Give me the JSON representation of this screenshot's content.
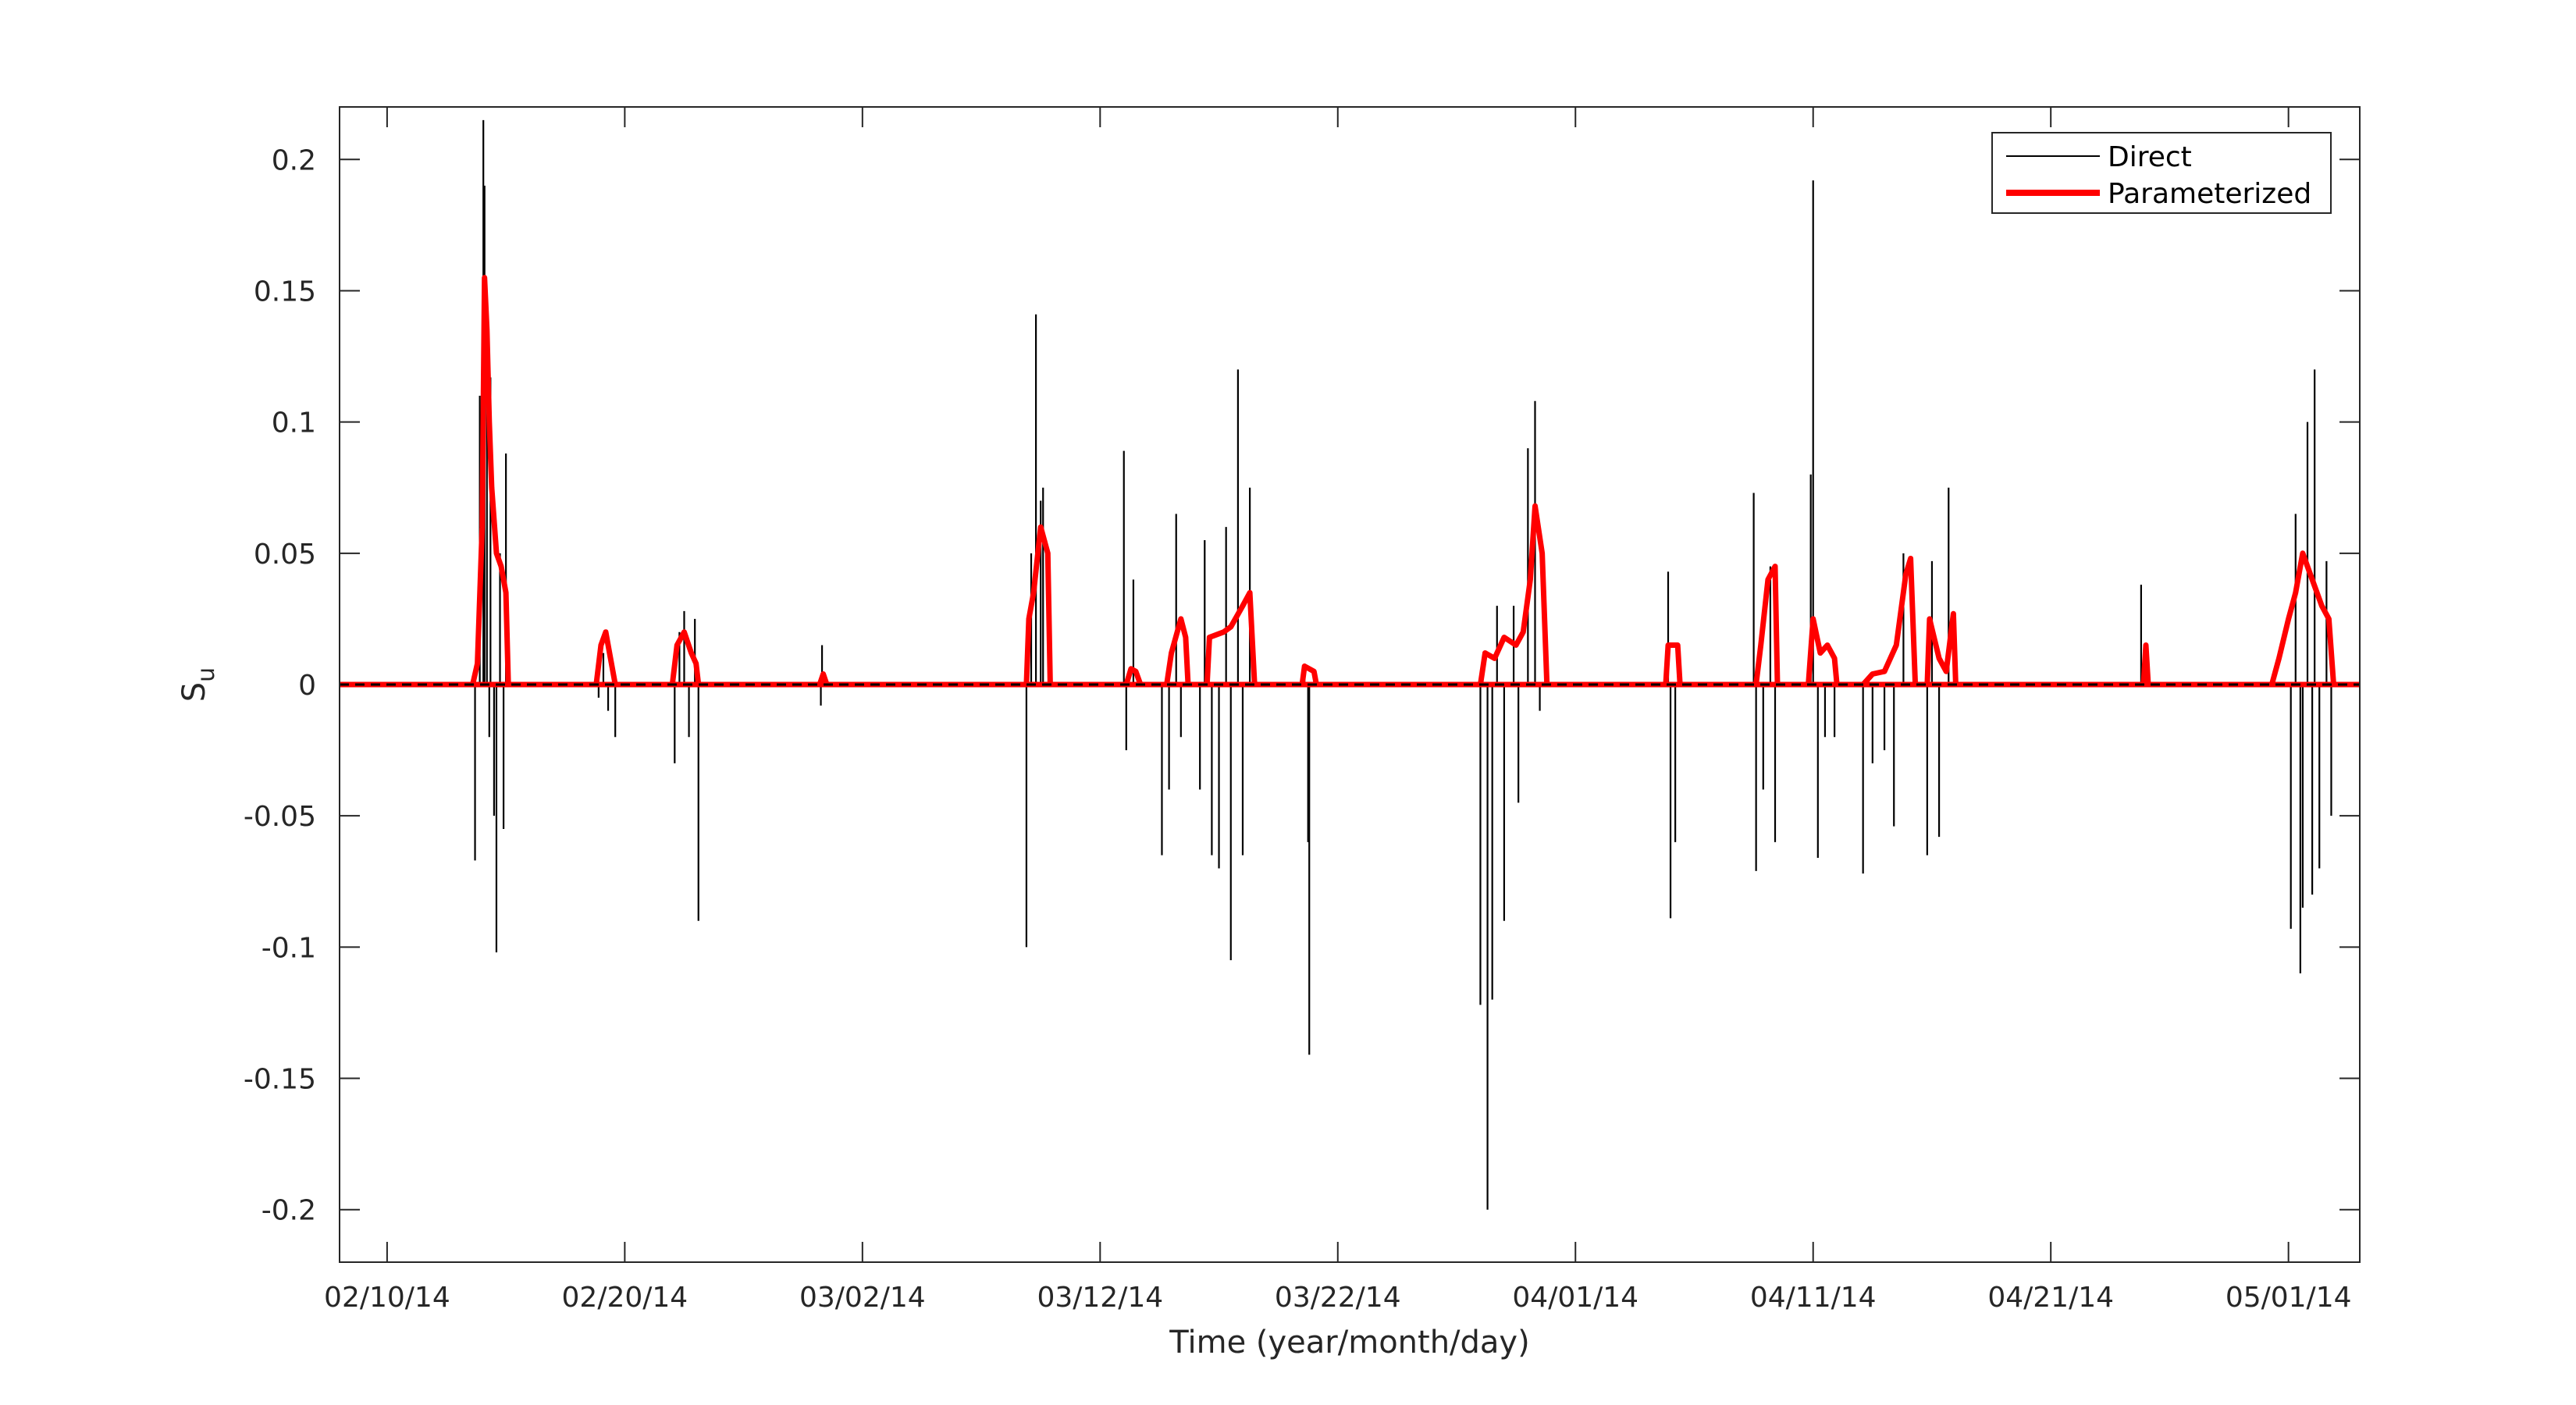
{
  "chart_data": {
    "type": "line",
    "xlabel": "Time (year/month/day)",
    "ylabel_main": "S",
    "ylabel_sub": "u",
    "x_start": "02/08/14",
    "x_end": "05/03/14",
    "xlim_days": [
      0,
      85
    ],
    "xticks": [
      {
        "day": 2,
        "label": "02/10/14"
      },
      {
        "day": 12,
        "label": "02/20/14"
      },
      {
        "day": 22,
        "label": "03/02/14"
      },
      {
        "day": 32,
        "label": "03/12/14"
      },
      {
        "day": 42,
        "label": "03/22/14"
      },
      {
        "day": 52,
        "label": "04/01/14"
      },
      {
        "day": 62,
        "label": "04/11/14"
      },
      {
        "day": 72,
        "label": "04/21/14"
      },
      {
        "day": 82,
        "label": "05/01/14"
      }
    ],
    "ylim": [
      -0.22,
      0.22
    ],
    "yticks": [
      {
        "value": 0.2,
        "label": "0.2"
      },
      {
        "value": 0.15,
        "label": "0.15"
      },
      {
        "value": 0.1,
        "label": "0.1"
      },
      {
        "value": 0.05,
        "label": "0.05"
      },
      {
        "value": 0,
        "label": "0"
      },
      {
        "value": -0.05,
        "label": "-0.05"
      },
      {
        "value": -0.1,
        "label": "-0.1"
      },
      {
        "value": -0.15,
        "label": "-0.15"
      },
      {
        "value": -0.2,
        "label": "-0.2"
      }
    ],
    "legend_position": "top-right",
    "series": [
      {
        "name": "Direct",
        "color": "#000000",
        "style": "thin line",
        "spikes": [
          [
            5.7,
            -0.067
          ],
          [
            5.9,
            0.11
          ],
          [
            6.05,
            0.215
          ],
          [
            6.1,
            0.19
          ],
          [
            6.2,
            0.147
          ],
          [
            6.35,
            0.117
          ],
          [
            6.5,
            -0.05
          ],
          [
            6.6,
            -0.102
          ],
          [
            6.75,
            0.05
          ],
          [
            6.9,
            -0.055
          ],
          [
            7.0,
            0.088
          ],
          [
            6.3,
            -0.02
          ],
          [
            10.9,
            -0.005
          ],
          [
            11.1,
            0.012
          ],
          [
            11.3,
            -0.01
          ],
          [
            11.6,
            -0.02
          ],
          [
            14.1,
            -0.03
          ],
          [
            14.3,
            0.02
          ],
          [
            14.5,
            0.028
          ],
          [
            14.7,
            -0.02
          ],
          [
            14.95,
            0.025
          ],
          [
            15.1,
            -0.09
          ],
          [
            20.3,
            0.015
          ],
          [
            20.25,
            -0.008
          ],
          [
            28.9,
            -0.1
          ],
          [
            29.1,
            0.05
          ],
          [
            29.3,
            0.141
          ],
          [
            29.5,
            0.07
          ],
          [
            29.6,
            0.075
          ],
          [
            33.0,
            0.089
          ],
          [
            33.1,
            -0.025
          ],
          [
            33.4,
            0.04
          ],
          [
            34.6,
            -0.065
          ],
          [
            34.9,
            -0.04
          ],
          [
            35.2,
            0.065
          ],
          [
            35.4,
            -0.02
          ],
          [
            36.2,
            -0.04
          ],
          [
            36.4,
            0.055
          ],
          [
            36.7,
            -0.065
          ],
          [
            37.0,
            -0.07
          ],
          [
            37.3,
            0.06
          ],
          [
            37.5,
            -0.105
          ],
          [
            37.8,
            0.12
          ],
          [
            38.0,
            -0.065
          ],
          [
            38.3,
            0.075
          ],
          [
            40.6,
            0.005
          ],
          [
            40.8,
            -0.141
          ],
          [
            40.75,
            -0.06
          ],
          [
            48.0,
            -0.122
          ],
          [
            48.3,
            -0.2
          ],
          [
            48.5,
            -0.12
          ],
          [
            48.7,
            0.03
          ],
          [
            49.0,
            -0.09
          ],
          [
            49.4,
            0.03
          ],
          [
            49.6,
            -0.045
          ],
          [
            50.0,
            0.09
          ],
          [
            50.3,
            0.108
          ],
          [
            50.5,
            -0.01
          ],
          [
            55.9,
            0.043
          ],
          [
            56.0,
            -0.089
          ],
          [
            56.2,
            -0.06
          ],
          [
            59.5,
            0.073
          ],
          [
            59.6,
            -0.071
          ],
          [
            59.9,
            -0.04
          ],
          [
            60.2,
            0.045
          ],
          [
            60.4,
            -0.06
          ],
          [
            62.0,
            0.192
          ],
          [
            61.9,
            0.08
          ],
          [
            62.2,
            -0.066
          ],
          [
            62.5,
            -0.02
          ],
          [
            62.9,
            -0.02
          ],
          [
            64.1,
            -0.072
          ],
          [
            64.5,
            -0.03
          ],
          [
            65.0,
            -0.025
          ],
          [
            65.4,
            -0.054
          ],
          [
            65.8,
            0.05
          ],
          [
            66.8,
            -0.065
          ],
          [
            67.0,
            0.047
          ],
          [
            67.3,
            -0.058
          ],
          [
            67.7,
            0.075
          ],
          [
            75.8,
            0.038
          ],
          [
            75.9,
            0.01
          ],
          [
            82.1,
            -0.093
          ],
          [
            82.3,
            0.065
          ],
          [
            82.5,
            -0.11
          ],
          [
            82.8,
            0.1
          ],
          [
            83.1,
            0.12
          ],
          [
            83.3,
            -0.07
          ],
          [
            83.6,
            0.047
          ],
          [
            83.8,
            -0.05
          ],
          [
            82.6,
            -0.085
          ],
          [
            83.0,
            -0.08
          ]
        ]
      },
      {
        "name": "Parameterized",
        "color": "#ff0000",
        "style": "thick line",
        "segments": [
          [
            [
              5.6,
              0
            ],
            [
              5.8,
              0.008
            ],
            [
              6.0,
              0.06
            ],
            [
              6.1,
              0.155
            ],
            [
              6.2,
              0.135
            ],
            [
              6.3,
              0.1
            ],
            [
              6.4,
              0.075
            ],
            [
              6.6,
              0.05
            ],
            [
              6.8,
              0.045
            ],
            [
              7.0,
              0.035
            ],
            [
              7.1,
              0
            ]
          ],
          [
            [
              10.8,
              0
            ],
            [
              11.0,
              0.015
            ],
            [
              11.2,
              0.02
            ],
            [
              11.4,
              0.01
            ],
            [
              11.6,
              0
            ]
          ],
          [
            [
              14.0,
              0
            ],
            [
              14.2,
              0.015
            ],
            [
              14.5,
              0.02
            ],
            [
              14.8,
              0.012
            ],
            [
              15.0,
              0.008
            ],
            [
              15.1,
              0
            ]
          ],
          [
            [
              20.2,
              0
            ],
            [
              20.35,
              0.004
            ],
            [
              20.5,
              0
            ]
          ],
          [
            [
              28.9,
              0
            ],
            [
              29.0,
              0.025
            ],
            [
              29.2,
              0.035
            ],
            [
              29.5,
              0.06
            ],
            [
              29.8,
              0.05
            ],
            [
              29.9,
              0
            ]
          ],
          [
            [
              33.1,
              0
            ],
            [
              33.3,
              0.006
            ],
            [
              33.5,
              0.005
            ],
            [
              33.7,
              0
            ]
          ],
          [
            [
              34.8,
              0
            ],
            [
              35.0,
              0.012
            ],
            [
              35.4,
              0.025
            ],
            [
              35.6,
              0.018
            ],
            [
              35.7,
              0
            ]
          ],
          [
            [
              36.5,
              0
            ],
            [
              36.6,
              0.018
            ],
            [
              37.2,
              0.02
            ],
            [
              37.5,
              0.022
            ],
            [
              38.0,
              0.03
            ],
            [
              38.3,
              0.035
            ],
            [
              38.5,
              0
            ]
          ],
          [
            [
              40.5,
              0
            ],
            [
              40.6,
              0.007
            ],
            [
              41.0,
              0.005
            ],
            [
              41.1,
              0
            ]
          ],
          [
            [
              48.0,
              0
            ],
            [
              48.2,
              0.012
            ],
            [
              48.6,
              0.01
            ],
            [
              49.0,
              0.018
            ],
            [
              49.5,
              0.015
            ],
            [
              49.8,
              0.02
            ],
            [
              50.1,
              0.04
            ],
            [
              50.3,
              0.068
            ],
            [
              50.6,
              0.05
            ],
            [
              50.8,
              0
            ]
          ],
          [
            [
              55.8,
              0
            ],
            [
              55.9,
              0.015
            ],
            [
              56.3,
              0.015
            ],
            [
              56.4,
              0
            ]
          ],
          [
            [
              59.6,
              0
            ],
            [
              59.8,
              0.015
            ],
            [
              60.1,
              0.04
            ],
            [
              60.4,
              0.045
            ],
            [
              60.5,
              0
            ]
          ],
          [
            [
              61.8,
              0
            ],
            [
              62.0,
              0.025
            ],
            [
              62.3,
              0.012
            ],
            [
              62.6,
              0.015
            ],
            [
              62.9,
              0.01
            ],
            [
              63.0,
              0
            ]
          ],
          [
            [
              64.1,
              0
            ],
            [
              64.5,
              0.004
            ],
            [
              65.0,
              0.005
            ],
            [
              65.5,
              0.015
            ],
            [
              65.9,
              0.042
            ],
            [
              66.1,
              0.048
            ],
            [
              66.3,
              0
            ]
          ],
          [
            [
              66.8,
              0
            ],
            [
              66.9,
              0.025
            ],
            [
              67.3,
              0.01
            ],
            [
              67.6,
              0.005
            ],
            [
              67.9,
              0.027
            ],
            [
              68.0,
              0
            ]
          ],
          [
            [
              75.9,
              0
            ],
            [
              76.0,
              0.015
            ],
            [
              76.1,
              0
            ]
          ],
          [
            [
              81.3,
              0
            ],
            [
              81.6,
              0.01
            ],
            [
              82.0,
              0.025
            ],
            [
              82.3,
              0.035
            ],
            [
              82.6,
              0.05
            ],
            [
              83.0,
              0.04
            ],
            [
              83.4,
              0.03
            ],
            [
              83.7,
              0.025
            ],
            [
              83.9,
              0
            ]
          ]
        ]
      }
    ]
  }
}
